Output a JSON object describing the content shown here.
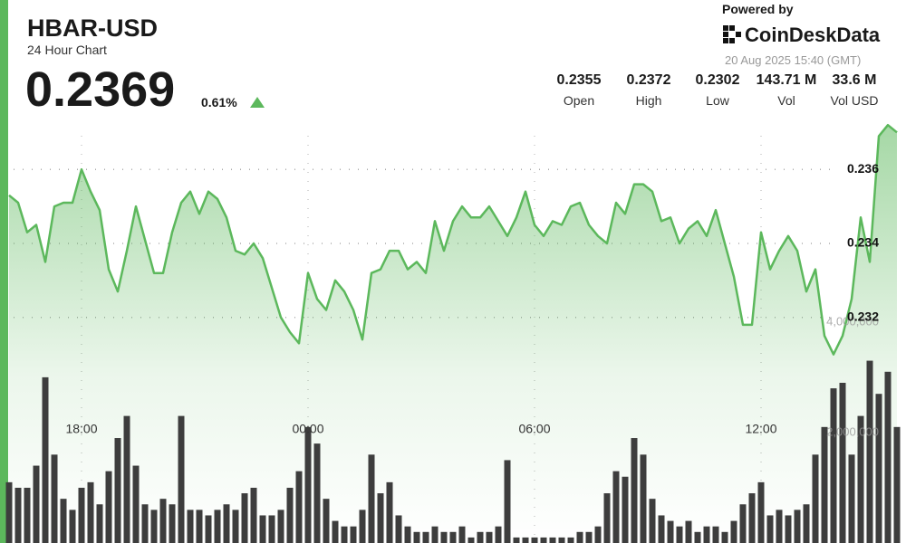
{
  "header": {
    "symbol": "HBAR-USD",
    "subtitle": "24 Hour Chart",
    "price": "0.2369",
    "change": "0.61%",
    "powered_by": "Powered by",
    "brand": "CoinDeskData",
    "timestamp": "20 Aug 2025 15:40 (GMT)"
  },
  "stats": [
    {
      "value": "0.2355",
      "label": "Open"
    },
    {
      "value": "0.2372",
      "label": "High"
    },
    {
      "value": "0.2302",
      "label": "Low"
    },
    {
      "value": "143.71 M",
      "label": "Vol"
    },
    {
      "value": "33.6 M",
      "label": "Vol USD"
    }
  ],
  "chart_data": {
    "type": "line",
    "categories": [
      null,
      null,
      null,
      null,
      null,
      null,
      null,
      null,
      "18:00",
      null,
      null,
      null,
      null,
      null,
      null,
      null,
      null,
      null,
      null,
      null,
      null,
      null,
      null,
      null,
      null,
      null,
      null,
      null,
      null,
      null,
      null,
      null,
      null,
      "00:00",
      null,
      null,
      null,
      null,
      null,
      null,
      null,
      null,
      null,
      null,
      null,
      null,
      null,
      null,
      null,
      null,
      null,
      null,
      null,
      null,
      null,
      null,
      null,
      null,
      "06:00",
      null,
      null,
      null,
      null,
      null,
      null,
      null,
      null,
      null,
      null,
      null,
      null,
      null,
      null,
      null,
      null,
      null,
      null,
      null,
      null,
      null,
      null,
      null,
      null,
      "12:00",
      null,
      null,
      null,
      null,
      null,
      null,
      null,
      null,
      null,
      null,
      null,
      null,
      null,
      null,
      null
    ],
    "series": [
      {
        "type": "area",
        "color": "#5cb85c",
        "values": [
          0.2353,
          0.2351,
          0.2343,
          0.2345,
          0.2335,
          0.235,
          0.2351,
          0.2351,
          0.236,
          0.2354,
          0.2349,
          0.2333,
          0.2327,
          0.2338,
          0.235,
          0.2341,
          0.2332,
          0.2332,
          0.2343,
          0.2351,
          0.2354,
          0.2348,
          0.2354,
          0.2352,
          0.2347,
          0.2338,
          0.2337,
          0.234,
          0.2336,
          0.2328,
          0.232,
          0.2316,
          0.2313,
          0.2332,
          0.2325,
          0.2322,
          0.233,
          0.2327,
          0.2322,
          0.2314,
          0.2332,
          0.2333,
          0.2338,
          0.2338,
          0.2333,
          0.2335,
          0.2332,
          0.2346,
          0.2338,
          0.2346,
          0.235,
          0.2347,
          0.2347,
          0.235,
          0.2346,
          0.2342,
          0.2347,
          0.2354,
          0.2345,
          0.2342,
          0.2346,
          0.2345,
          0.235,
          0.2351,
          0.2345,
          0.2342,
          0.234,
          0.2351,
          0.2348,
          0.2356,
          0.2356,
          0.2354,
          0.2346,
          0.2347,
          0.234,
          0.2344,
          0.2346,
          0.2342,
          0.2349,
          0.234,
          0.2331,
          0.2318,
          0.2318,
          0.2343,
          0.2333,
          0.2338,
          0.2342,
          0.2338,
          0.2327,
          0.2333,
          0.2315,
          0.231,
          0.2315,
          0.2325,
          0.2347,
          0.2335,
          0.2369,
          0.2372,
          0.237
        ]
      },
      {
        "type": "bar",
        "axis": "y2",
        "color": "#3d3d3d",
        "values": [
          1100000,
          1000000,
          1000000,
          1400000,
          3000000,
          1600000,
          800000,
          600000,
          1000000,
          1100000,
          700000,
          1300000,
          1900000,
          2300000,
          1400000,
          700000,
          600000,
          800000,
          700000,
          2300000,
          600000,
          600000,
          500000,
          600000,
          700000,
          600000,
          900000,
          1000000,
          500000,
          500000,
          600000,
          1000000,
          1300000,
          2100000,
          1800000,
          800000,
          400000,
          300000,
          300000,
          600000,
          1600000,
          900000,
          1100000,
          500000,
          300000,
          200000,
          200000,
          300000,
          200000,
          200000,
          300000,
          100000,
          200000,
          200000,
          300000,
          1500000,
          100000,
          100000,
          100000,
          100000,
          100000,
          100000,
          100000,
          200000,
          200000,
          300000,
          900000,
          1300000,
          1200000,
          1900000,
          1600000,
          800000,
          500000,
          400000,
          300000,
          400000,
          200000,
          300000,
          300000,
          200000,
          400000,
          700000,
          900000,
          1100000,
          500000,
          600000,
          500000,
          600000,
          700000,
          1600000,
          2100000,
          2800000,
          2900000,
          1600000,
          2300000,
          3300000,
          2700000,
          3100000,
          2100000
        ]
      }
    ],
    "ylim": [
      0.2259,
      0.2374
    ],
    "yticks": [
      0.232,
      0.234,
      0.236
    ],
    "y2lim": [
      0,
      7700000
    ],
    "y2ticks": [
      {
        "value": 2000000,
        "label": "2,000,000"
      },
      {
        "value": 4000000,
        "label": "4,000,000"
      }
    ],
    "grid": true
  }
}
